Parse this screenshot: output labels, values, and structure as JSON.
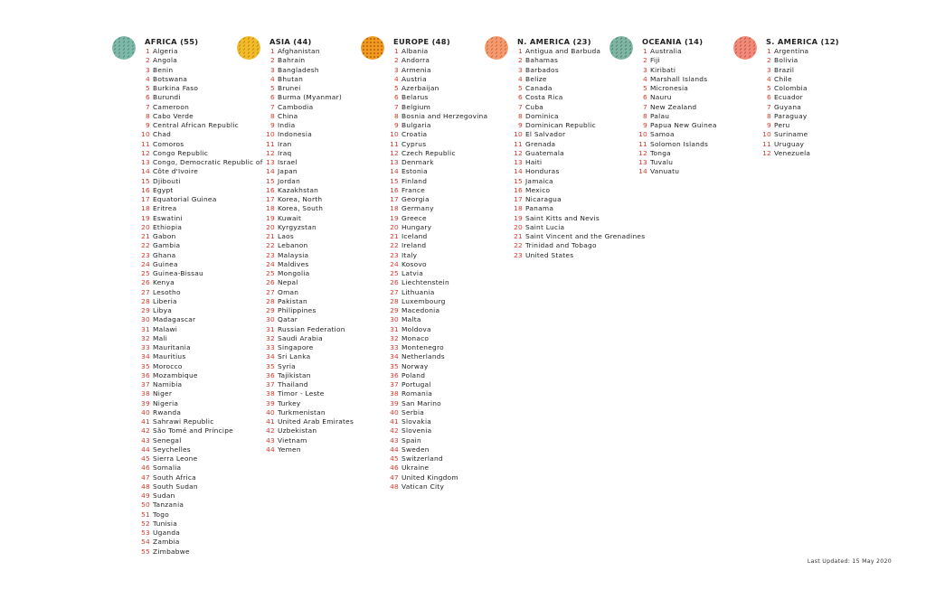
{
  "colors": {
    "number": "#d33a2c",
    "text": "#222222"
  },
  "regions": [
    {
      "title": "AFRICA (55)",
      "icon": "africa-icon",
      "color": "#7eb8a8",
      "countries": [
        "Algeria",
        "Angola",
        "Benin",
        "Botswana",
        "Burkina Faso",
        "Burundi",
        "Cameroon",
        "Cabo Verde",
        "Central African Republic",
        "Chad",
        "Comoros",
        "Congo Republic",
        "Congo, Democratic Republic of",
        "Côte d'Ivoire",
        "Djibouti",
        "Egypt",
        "Equatorial Guinea",
        "Eritrea",
        "Eswatini",
        "Ethiopia",
        "Gabon",
        "Gambia",
        "Ghana",
        "Guinea",
        "Guinea-Bissau",
        "Kenya",
        "Lesotho",
        "Liberia",
        "Libya",
        "Madagascar",
        "Malawi",
        "Mali",
        "Mauritania",
        "Mauritius",
        "Morocco",
        "Mozambique",
        "Namibia",
        "Niger",
        "Nigeria",
        "Rwanda",
        "Sahrawi Republic",
        "São Tomé and Príncipe",
        "Senegal",
        "Seychelles",
        "Sierra Leone",
        "Somalia",
        "South Africa",
        "South Sudan",
        "Sudan",
        "Tanzania",
        "Togo",
        "Tunisia",
        "Uganda",
        "Zambia",
        "Zimbabwe"
      ]
    },
    {
      "title": "ASIA (44)",
      "icon": "asia-icon",
      "color": "#f2bb2c",
      "countries": [
        "Afghanistan",
        "Bahrain",
        "Bangladesh",
        "Bhutan",
        "Brunei",
        "Burma (Myanmar)",
        "Cambodia",
        "China",
        "India",
        "Indonesia",
        "Iran",
        "Iraq",
        "Israel",
        "Japan",
        "Jordan",
        "Kazakhstan",
        "Korea, North",
        "Korea, South",
        "Kuwait",
        "Kyrgyzstan",
        "Laos",
        "Lebanon",
        "Malaysia",
        "Maldives",
        "Mongolia",
        "Nepal",
        "Oman",
        "Pakistan",
        "Philippines",
        "Qatar",
        "Russian Federation",
        "Saudi Arabia",
        "Singapore",
        "Sri Lanka",
        "Syria",
        "Tajikistan",
        "Thailand",
        "Timor - Leste",
        "Turkey",
        "Turkmenistan",
        "United Arab Emirates",
        "Uzbekistan",
        "Vietnam",
        "Yemen"
      ]
    },
    {
      "title": "EUROPE (48)",
      "icon": "europe-icon",
      "color": "#f19a22",
      "countries": [
        "Albania",
        "Andorra",
        "Armenia",
        "Austria",
        "Azerbaijan",
        "Belarus",
        "Belgium",
        "Bosnia and Herzegovina",
        "Bulgaria",
        "Croatia",
        "Cyprus",
        "Czech Republic",
        "Denmark",
        "Estonia",
        "Finland",
        "France",
        "Georgia",
        "Germany",
        "Greece",
        "Hungary",
        "Iceland",
        "Ireland",
        "Italy",
        "Kosovo",
        "Latvia",
        "Liechtenstein",
        "Lithuania",
        "Luxembourg",
        "Macedonia",
        "Malta",
        "Moldova",
        "Monaco",
        "Montenegro",
        "Netherlands",
        "Norway",
        "Poland",
        "Portugal",
        "Romania",
        "San Marino",
        "Serbia",
        "Slovakia",
        "Slovenia",
        "Spain",
        "Sweden",
        "Switzerland",
        "Ukraine",
        "United Kingdom",
        "Vatican City"
      ]
    },
    {
      "title": "N. AMERICA (23)",
      "icon": "north-america-icon",
      "color": "#f49a6e",
      "countries": [
        "Antigua and Barbuda",
        "Bahamas",
        "Barbados",
        "Belize",
        "Canada",
        "Costa Rica",
        "Cuba",
        "Dominica",
        "Dominican Republic",
        "El Salvador",
        "Grenada",
        "Guatemala",
        "Haiti",
        "Honduras",
        "Jamaica",
        "Mexico",
        "Nicaragua",
        "Panama",
        "Saint Kitts and Nevis",
        "Saint Lucia",
        "Saint Vincent and the Grenadines",
        "Trinidad and Tobago",
        "United States"
      ]
    },
    {
      "title": "OCEANIA (14)",
      "icon": "oceania-icon",
      "color": "#7fb5a2",
      "countries": [
        "Australia",
        "Fiji",
        "Kiribati",
        "Marshall Islands",
        "Micronesia",
        "Nauru",
        "New Zealand",
        "Palau",
        "Papua New Guinea",
        "Samoa",
        "Solomon Islands",
        "Tonga",
        "Tuvalu",
        "Vanuatu"
      ]
    },
    {
      "title": "S. AMERICA (12)",
      "icon": "south-america-icon",
      "color": "#f28a7a",
      "countries": [
        "Argentina",
        "Bolivia",
        "Brazil",
        "Chile",
        "Colombia",
        "Ecuador",
        "Guyana",
        "Paraguay",
        "Peru",
        "Suriname",
        "Uruguay",
        "Venezuela"
      ]
    }
  ],
  "footer": {
    "text": "Last Updated:  15 May 2020"
  }
}
